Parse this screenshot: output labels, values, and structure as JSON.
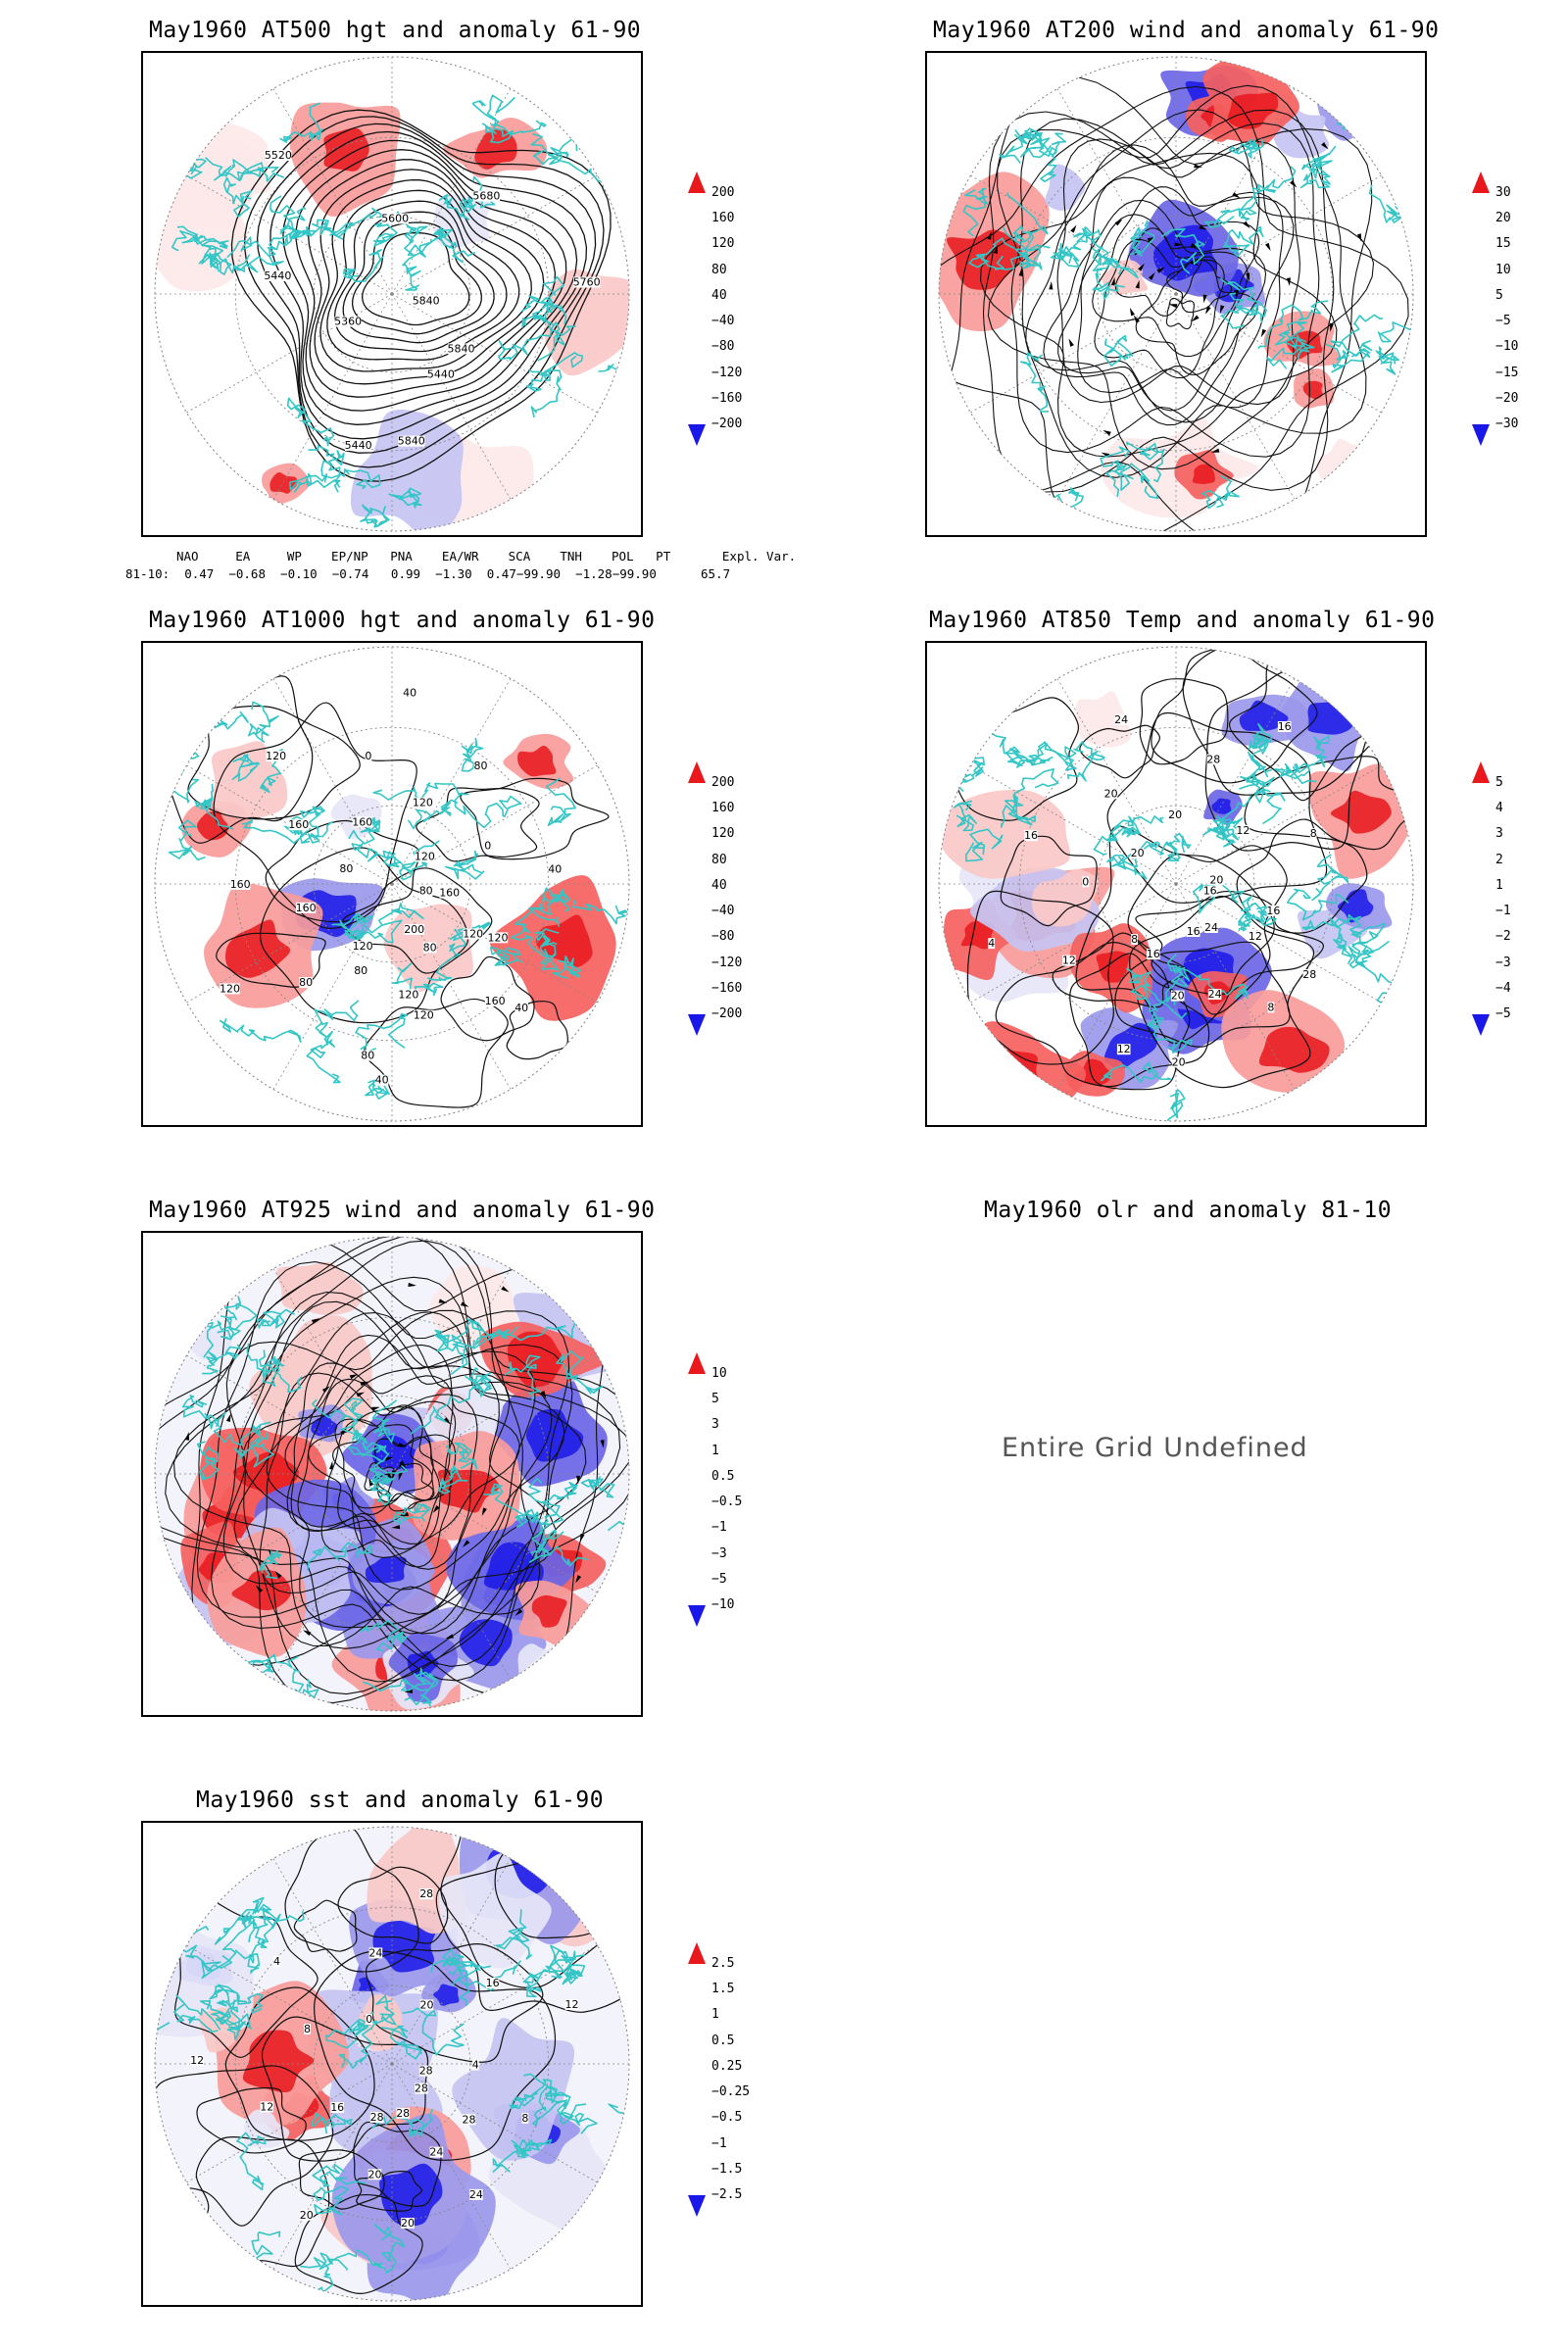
{
  "panels": [
    {
      "title": "May1960 AT500 hgt and anomaly 61-90",
      "type": "hgt500",
      "contour_labels": [
        "5840",
        "5440",
        "5440",
        "5360",
        "5440",
        "5520",
        "5600",
        "5680",
        "5760",
        "5840",
        "5840"
      ],
      "colorbar": {
        "labels": [
          "200",
          "160",
          "120",
          "80",
          "40",
          "−40",
          "−80",
          "−120",
          "−160",
          "−200"
        ]
      }
    },
    {
      "title": "May1960 AT200 wind and anomaly 61-90",
      "type": "wind200",
      "contour_labels": [],
      "colorbar": {
        "labels": [
          "30",
          "20",
          "15",
          "10",
          "5",
          "−5",
          "−10",
          "−15",
          "−20",
          "−30"
        ]
      }
    },
    {
      "title": "May1960 AT1000 hgt and anomaly 61-90",
      "type": "hgt1000",
      "contour_labels": [
        "80",
        "120",
        "160",
        "200",
        "120",
        "80",
        "120",
        "80",
        "120",
        "160",
        "160",
        "80",
        "160",
        "120",
        "160",
        "0",
        "40",
        "120",
        "80",
        "120",
        "0",
        "40",
        "160",
        "120",
        "40",
        "80",
        "120",
        "40",
        "80"
      ],
      "colorbar": {
        "labels": [
          "200",
          "160",
          "120",
          "80",
          "40",
          "−40",
          "−80",
          "−120",
          "−160",
          "−200"
        ]
      }
    },
    {
      "title": "May1960 AT850 Temp and anomaly 61-90",
      "type": "temp850",
      "contour_labels": [
        "16",
        "12",
        "8",
        "16",
        "20",
        "12",
        "8",
        "12",
        "4",
        "0",
        "16",
        "20",
        "20",
        "24",
        "20",
        "28",
        "16",
        "12",
        "8",
        "20",
        "16",
        "28",
        "24",
        "24",
        "20",
        "16"
      ],
      "colorbar": {
        "labels": [
          "5",
          "4",
          "3",
          "2",
          "1",
          "−1",
          "−2",
          "−3",
          "−4",
          "−5"
        ]
      }
    },
    {
      "title": "May1960 AT925 wind and anomaly 61-90",
      "type": "wind925",
      "contour_labels": [],
      "colorbar": {
        "labels": [
          "10",
          "5",
          "3",
          "1",
          "0.5",
          "−0.5",
          "−1",
          "−3",
          "−5",
          "−10"
        ]
      }
    },
    {
      "title": "May1960 olr and anomaly 81-10",
      "type": "olr",
      "undefined_text": "Entire Grid Undefined"
    },
    {
      "title": "May1960 sst and anomaly 61-90",
      "type": "sst",
      "contour_labels": [
        "28",
        "28",
        "24",
        "28",
        "20",
        "20",
        "16",
        "12",
        "12",
        "8",
        "4",
        "0",
        "24",
        "28",
        "20",
        "16",
        "12",
        "4",
        "8",
        "28",
        "24",
        "20",
        "28"
      ],
      "colorbar": {
        "labels": [
          "2.5",
          "1.5",
          "1",
          "0.5",
          "0.25",
          "−0.25",
          "−0.5",
          "−1",
          "−1.5",
          "−2.5"
        ]
      }
    }
  ],
  "indices": {
    "header": "NAO     EA     WP    EP/NP   PNA    EA/WR    SCA    TNH    POL   PT       Expl. Var.",
    "row": "81-10:  0.47  −0.68  −0.10  −0.74   0.99  −1.30  0.47−99.90  −1.28−99.90      65.7"
  },
  "colors": {
    "ramp": [
      "#e8181c",
      "#f5615f",
      "#f89c9a",
      "#fac9c8",
      "#fde8e8",
      "#ffffff",
      "#e6e6f7",
      "#c5c4f2",
      "#9b98ec",
      "#6b66e6",
      "#1a18e8"
    ],
    "coast": "#34c6c6",
    "contour": "#111111",
    "grid": "#888888"
  }
}
